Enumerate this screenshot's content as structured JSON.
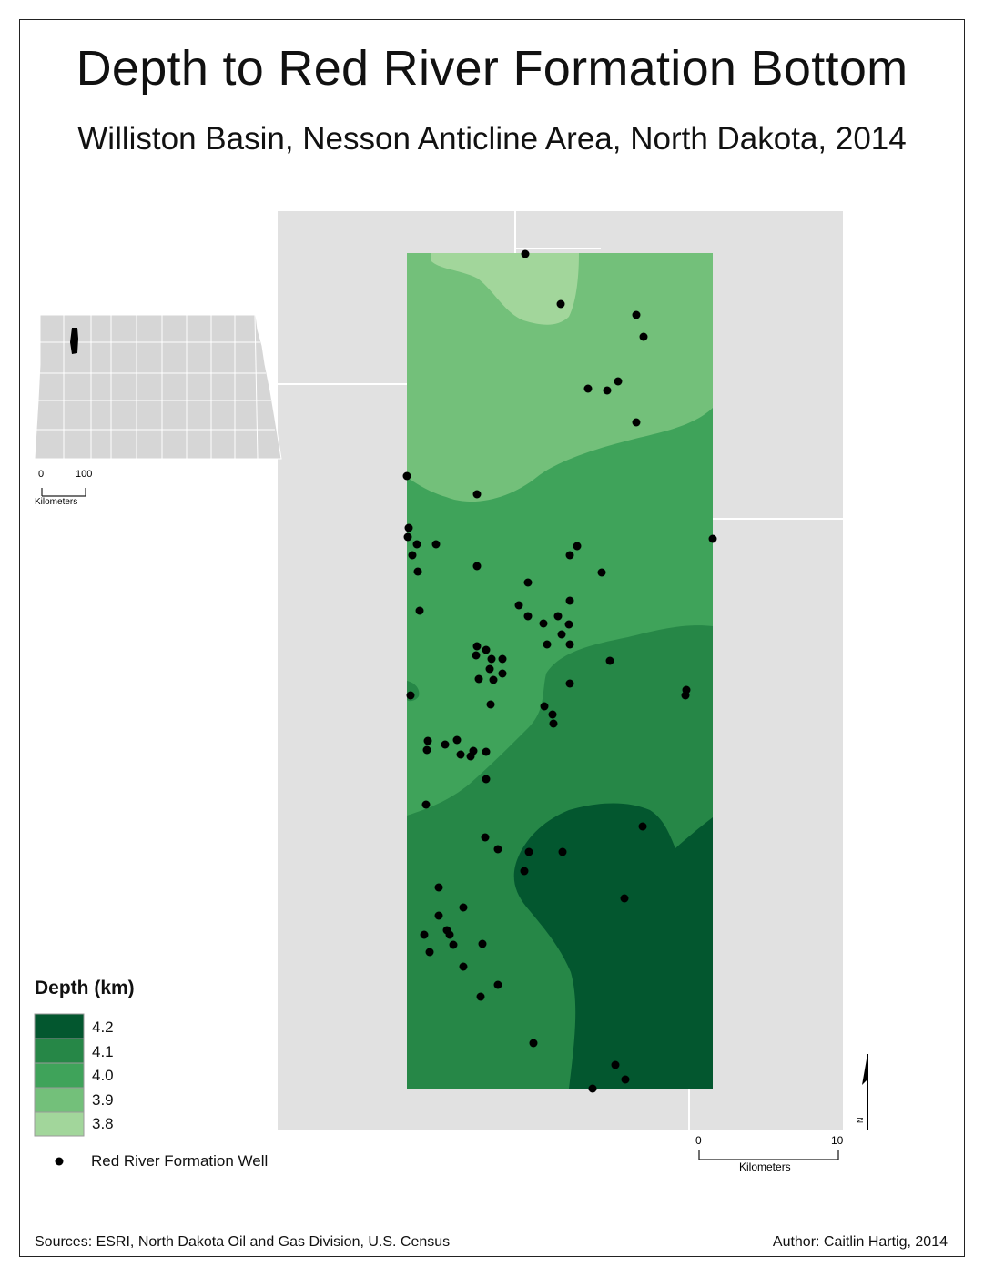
{
  "title": "Depth to Red River Formation Bottom",
  "subtitle": "Williston Basin, Nesson Anticline Area, North Dakota, 2014",
  "legend": {
    "title": "Depth (km)",
    "classes": [
      {
        "label": "4.2",
        "color": "#03572f"
      },
      {
        "label": "4.1",
        "color": "#268747"
      },
      {
        "label": "4.0",
        "color": "#3fa35a"
      },
      {
        "label": "3.9",
        "color": "#73c07a"
      },
      {
        "label": "3.8",
        "color": "#a2d69b"
      }
    ],
    "well_label": "Red River Formation Well"
  },
  "inset": {
    "scale_start": "0",
    "scale_end": "100",
    "scale_unit": "Kilometers"
  },
  "scalebar": {
    "start": "0",
    "end": "10",
    "unit": "Kilometers"
  },
  "north_arrow": {
    "letter": "N"
  },
  "footer": {
    "sources": "Sources: ESRI, North Dakota Oil and Gas Division, U.S. Census",
    "author": "Author: Caitlin Hartig, 2014"
  },
  "colors": {
    "background_gray": "#e1e1e1",
    "county_line": "#ffffff",
    "well": "#000000"
  }
}
